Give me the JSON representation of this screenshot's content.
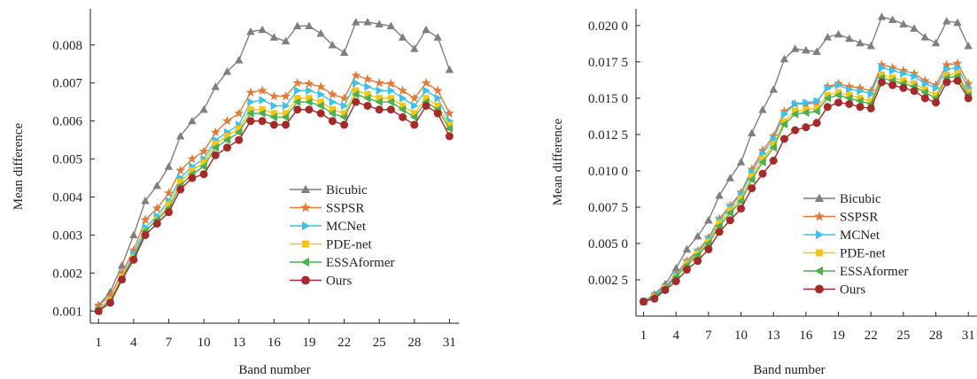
{
  "chart_data": [
    {
      "type": "line",
      "title": "",
      "xlabel": "Band number",
      "ylabel": "Mean difference",
      "xlim": [
        0.3,
        31.8
      ],
      "ylim": [
        0.00068,
        0.00895
      ],
      "xticks": [
        1,
        4,
        7,
        10,
        13,
        16,
        19,
        22,
        25,
        28,
        31
      ],
      "xtick_labels": [
        "1",
        "4",
        "7",
        "10",
        "13",
        "16",
        "19",
        "22",
        "25",
        "28",
        "31"
      ],
      "yticks": [
        0.001,
        0.002,
        0.003,
        0.004,
        0.005,
        0.006,
        0.007,
        0.008
      ],
      "ytick_labels": [
        "0.001",
        "0.002",
        "0.003",
        "0.004",
        "0.005",
        "0.006",
        "0.007",
        "0.008"
      ],
      "grid": false,
      "legend_position": "bottom-right",
      "x": [
        1,
        2,
        3,
        4,
        5,
        6,
        7,
        8,
        9,
        10,
        11,
        12,
        13,
        14,
        15,
        16,
        17,
        18,
        19,
        20,
        21,
        22,
        23,
        24,
        25,
        26,
        27,
        28,
        29,
        30,
        31
      ],
      "series": [
        {
          "name": "Bicubic",
          "color": "#7f7f7f",
          "marker": "triangle-up",
          "values": [
            0.00115,
            0.0015,
            0.0022,
            0.003,
            0.0039,
            0.0043,
            0.0048,
            0.0056,
            0.006,
            0.0063,
            0.0069,
            0.0073,
            0.0076,
            0.00835,
            0.0084,
            0.0082,
            0.0081,
            0.0085,
            0.0085,
            0.0083,
            0.008,
            0.0078,
            0.0086,
            0.0086,
            0.00855,
            0.0085,
            0.0082,
            0.0079,
            0.0084,
            0.0082,
            0.00735
          ]
        },
        {
          "name": "SSPSR",
          "color": "#e07b39",
          "marker": "star",
          "values": [
            0.00115,
            0.0014,
            0.002,
            0.0026,
            0.0034,
            0.0037,
            0.0041,
            0.0047,
            0.005,
            0.0052,
            0.0057,
            0.006,
            0.0062,
            0.00675,
            0.0068,
            0.00665,
            0.00665,
            0.007,
            0.00698,
            0.0069,
            0.0067,
            0.0066,
            0.0072,
            0.0071,
            0.007,
            0.00698,
            0.0068,
            0.0066,
            0.007,
            0.0068,
            0.0062
          ]
        },
        {
          "name": "MCNet",
          "color": "#3fc1e8",
          "marker": "triangle-right",
          "values": [
            0.00105,
            0.0013,
            0.0019,
            0.0025,
            0.0032,
            0.0035,
            0.0039,
            0.0045,
            0.0048,
            0.005,
            0.0055,
            0.0057,
            0.0059,
            0.0065,
            0.00655,
            0.0064,
            0.0064,
            0.0068,
            0.0068,
            0.0067,
            0.0065,
            0.0064,
            0.007,
            0.0069,
            0.0068,
            0.0068,
            0.0066,
            0.0064,
            0.0068,
            0.0066,
            0.006
          ]
        },
        {
          "name": "PDE-net",
          "color": "#f5c518",
          "marker": "square",
          "values": [
            0.00102,
            0.00128,
            0.0019,
            0.0024,
            0.0031,
            0.0034,
            0.0038,
            0.0044,
            0.0047,
            0.0049,
            0.0054,
            0.0056,
            0.0058,
            0.0063,
            0.0063,
            0.0062,
            0.0062,
            0.0066,
            0.0066,
            0.0065,
            0.0063,
            0.0062,
            0.0068,
            0.0067,
            0.0066,
            0.0066,
            0.0064,
            0.0062,
            0.0066,
            0.0064,
            0.0059
          ]
        },
        {
          "name": "ESSAformer",
          "color": "#4caf50",
          "marker": "triangle-left",
          "values": [
            0.001,
            0.00125,
            0.00185,
            0.0024,
            0.0031,
            0.0034,
            0.0037,
            0.0043,
            0.0046,
            0.0048,
            0.0053,
            0.0055,
            0.0057,
            0.0062,
            0.0062,
            0.0061,
            0.0061,
            0.0065,
            0.0065,
            0.0064,
            0.0062,
            0.0061,
            0.0067,
            0.0066,
            0.0065,
            0.0065,
            0.0063,
            0.0061,
            0.0065,
            0.0063,
            0.0058
          ]
        },
        {
          "name": "Ours",
          "color": "#a52a2a",
          "marker": "circle",
          "values": [
            0.001,
            0.00122,
            0.00183,
            0.00235,
            0.003,
            0.0033,
            0.0036,
            0.0042,
            0.0045,
            0.0046,
            0.0051,
            0.0053,
            0.0055,
            0.006,
            0.006,
            0.0059,
            0.0059,
            0.0063,
            0.0063,
            0.0062,
            0.006,
            0.0059,
            0.0065,
            0.0064,
            0.0063,
            0.0063,
            0.0061,
            0.0059,
            0.0064,
            0.0062,
            0.0056
          ]
        }
      ]
    },
    {
      "type": "line",
      "title": "",
      "xlabel": "Band number",
      "ylabel": "Mean difference",
      "xlim": [
        0.3,
        31.8
      ],
      "ylim": [
        0.0,
        0.02115
      ],
      "xticks": [
        1,
        4,
        7,
        10,
        13,
        16,
        19,
        22,
        25,
        28,
        31
      ],
      "xtick_labels": [
        "1",
        "4",
        "7",
        "10",
        "13",
        "16",
        "19",
        "22",
        "25",
        "28",
        "31"
      ],
      "yticks": [
        0.0025,
        0.005,
        0.0075,
        0.01,
        0.0125,
        0.015,
        0.0175,
        0.02
      ],
      "ytick_labels": [
        "0.002 5",
        "0.005 0",
        "0.007 5",
        "0.010 0",
        "0.012 5",
        "0.015 0",
        "0.017 5",
        "0.020 0"
      ],
      "grid": false,
      "legend_position": "bottom-right",
      "x": [
        1,
        2,
        3,
        4,
        5,
        6,
        7,
        8,
        9,
        10,
        11,
        12,
        13,
        14,
        15,
        16,
        17,
        18,
        19,
        20,
        21,
        22,
        23,
        24,
        25,
        26,
        27,
        28,
        29,
        30,
        31
      ],
      "series": [
        {
          "name": "Bicubic",
          "color": "#7f7f7f",
          "marker": "triangle-up",
          "values": [
            0.001,
            0.0015,
            0.0022,
            0.0033,
            0.0046,
            0.0055,
            0.0066,
            0.0083,
            0.0095,
            0.0106,
            0.0126,
            0.0142,
            0.0156,
            0.0177,
            0.0184,
            0.0183,
            0.0182,
            0.0192,
            0.0194,
            0.0191,
            0.0188,
            0.0186,
            0.0206,
            0.0204,
            0.0201,
            0.0198,
            0.0192,
            0.0188,
            0.0203,
            0.0202,
            0.0186
          ]
        },
        {
          "name": "SSPSR",
          "color": "#e07b39",
          "marker": "star",
          "values": [
            0.001,
            0.0014,
            0.002,
            0.0029,
            0.0038,
            0.0045,
            0.0054,
            0.0067,
            0.0076,
            0.0085,
            0.0101,
            0.0114,
            0.0124,
            0.0141,
            0.0146,
            0.0146,
            0.0147,
            0.0158,
            0.016,
            0.0158,
            0.0157,
            0.0155,
            0.0173,
            0.0171,
            0.0169,
            0.0167,
            0.0162,
            0.0159,
            0.0173,
            0.0174,
            0.016
          ]
        },
        {
          "name": "MCNet",
          "color": "#3fc1e8",
          "marker": "triangle-right",
          "values": [
            0.001,
            0.0014,
            0.002,
            0.0028,
            0.0037,
            0.0044,
            0.0053,
            0.0066,
            0.0075,
            0.0084,
            0.0099,
            0.0112,
            0.0122,
            0.0139,
            0.0146,
            0.0147,
            0.0148,
            0.0157,
            0.0159,
            0.0156,
            0.0155,
            0.0153,
            0.0171,
            0.0169,
            0.0167,
            0.0165,
            0.016,
            0.0157,
            0.017,
            0.0171,
            0.0157
          ]
        },
        {
          "name": "PDE-net",
          "color": "#f5c518",
          "marker": "square",
          "values": [
            0.001,
            0.0013,
            0.0019,
            0.0027,
            0.0036,
            0.0043,
            0.0051,
            0.0064,
            0.0073,
            0.0081,
            0.0096,
            0.0108,
            0.0118,
            0.0134,
            0.0141,
            0.0142,
            0.0143,
            0.0152,
            0.0154,
            0.0152,
            0.015,
            0.0148,
            0.0166,
            0.0164,
            0.0162,
            0.016,
            0.0156,
            0.0152,
            0.0166,
            0.0167,
            0.0154
          ]
        },
        {
          "name": "ESSAformer",
          "color": "#4caf50",
          "marker": "triangle-left",
          "values": [
            0.001,
            0.0013,
            0.0019,
            0.0027,
            0.0035,
            0.0042,
            0.005,
            0.0062,
            0.0071,
            0.0079,
            0.0094,
            0.0106,
            0.0116,
            0.0132,
            0.0139,
            0.014,
            0.0141,
            0.015,
            0.0152,
            0.015,
            0.0148,
            0.0146,
            0.0164,
            0.0162,
            0.016,
            0.0158,
            0.0154,
            0.015,
            0.0164,
            0.0165,
            0.0152
          ]
        },
        {
          "name": "Ours",
          "color": "#a52a2a",
          "marker": "circle",
          "values": [
            0.001,
            0.0012,
            0.0018,
            0.0024,
            0.0032,
            0.0038,
            0.0046,
            0.0058,
            0.0066,
            0.0074,
            0.0088,
            0.0098,
            0.0107,
            0.0122,
            0.0128,
            0.013,
            0.0133,
            0.0144,
            0.0147,
            0.0146,
            0.0144,
            0.0143,
            0.0161,
            0.0159,
            0.0157,
            0.0155,
            0.015,
            0.0147,
            0.0161,
            0.0162,
            0.015
          ]
        }
      ]
    }
  ]
}
